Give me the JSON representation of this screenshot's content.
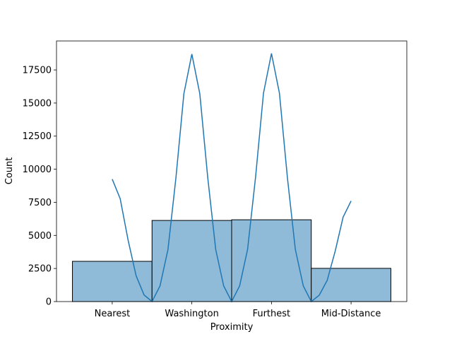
{
  "chart_data": {
    "type": "bar",
    "x_label": "Proximity",
    "y_label": "Count",
    "categories": [
      "Nearest",
      "Washington",
      "Furthest",
      "Mid-Distance"
    ],
    "values": [
      3040,
      6130,
      6180,
      2510
    ],
    "color": "#8fbbd9",
    "edge_color": "#000000",
    "kde": {
      "color": "#1f77b4",
      "x": [
        0,
        0.1,
        0.2,
        0.3,
        0.4,
        0.5,
        0.6,
        0.7,
        0.8,
        0.9,
        1,
        1.1,
        1.2,
        1.3,
        1.4,
        1.5,
        1.6,
        1.7,
        1.8,
        1.9,
        2,
        2.1,
        2.2,
        2.3,
        2.4,
        2.5,
        2.6,
        2.7,
        2.8,
        2.9,
        3
      ],
      "values": [
        9250,
        7770,
        4625,
        1950,
        500,
        0,
        1180,
        3930,
        9350,
        15700,
        18700,
        15700,
        9350,
        3930,
        1180,
        0,
        1180,
        3940,
        9380,
        15750,
        18750,
        15750,
        9380,
        3940,
        1180,
        0,
        480,
        1600,
        3800,
        6380,
        7600
      ]
    },
    "xlim": [
      -0.7,
      3.7
    ],
    "ylim": [
      0,
      19690
    ],
    "yticks": [
      0,
      2500,
      5000,
      7500,
      10000,
      12500,
      15000,
      17500
    ]
  }
}
